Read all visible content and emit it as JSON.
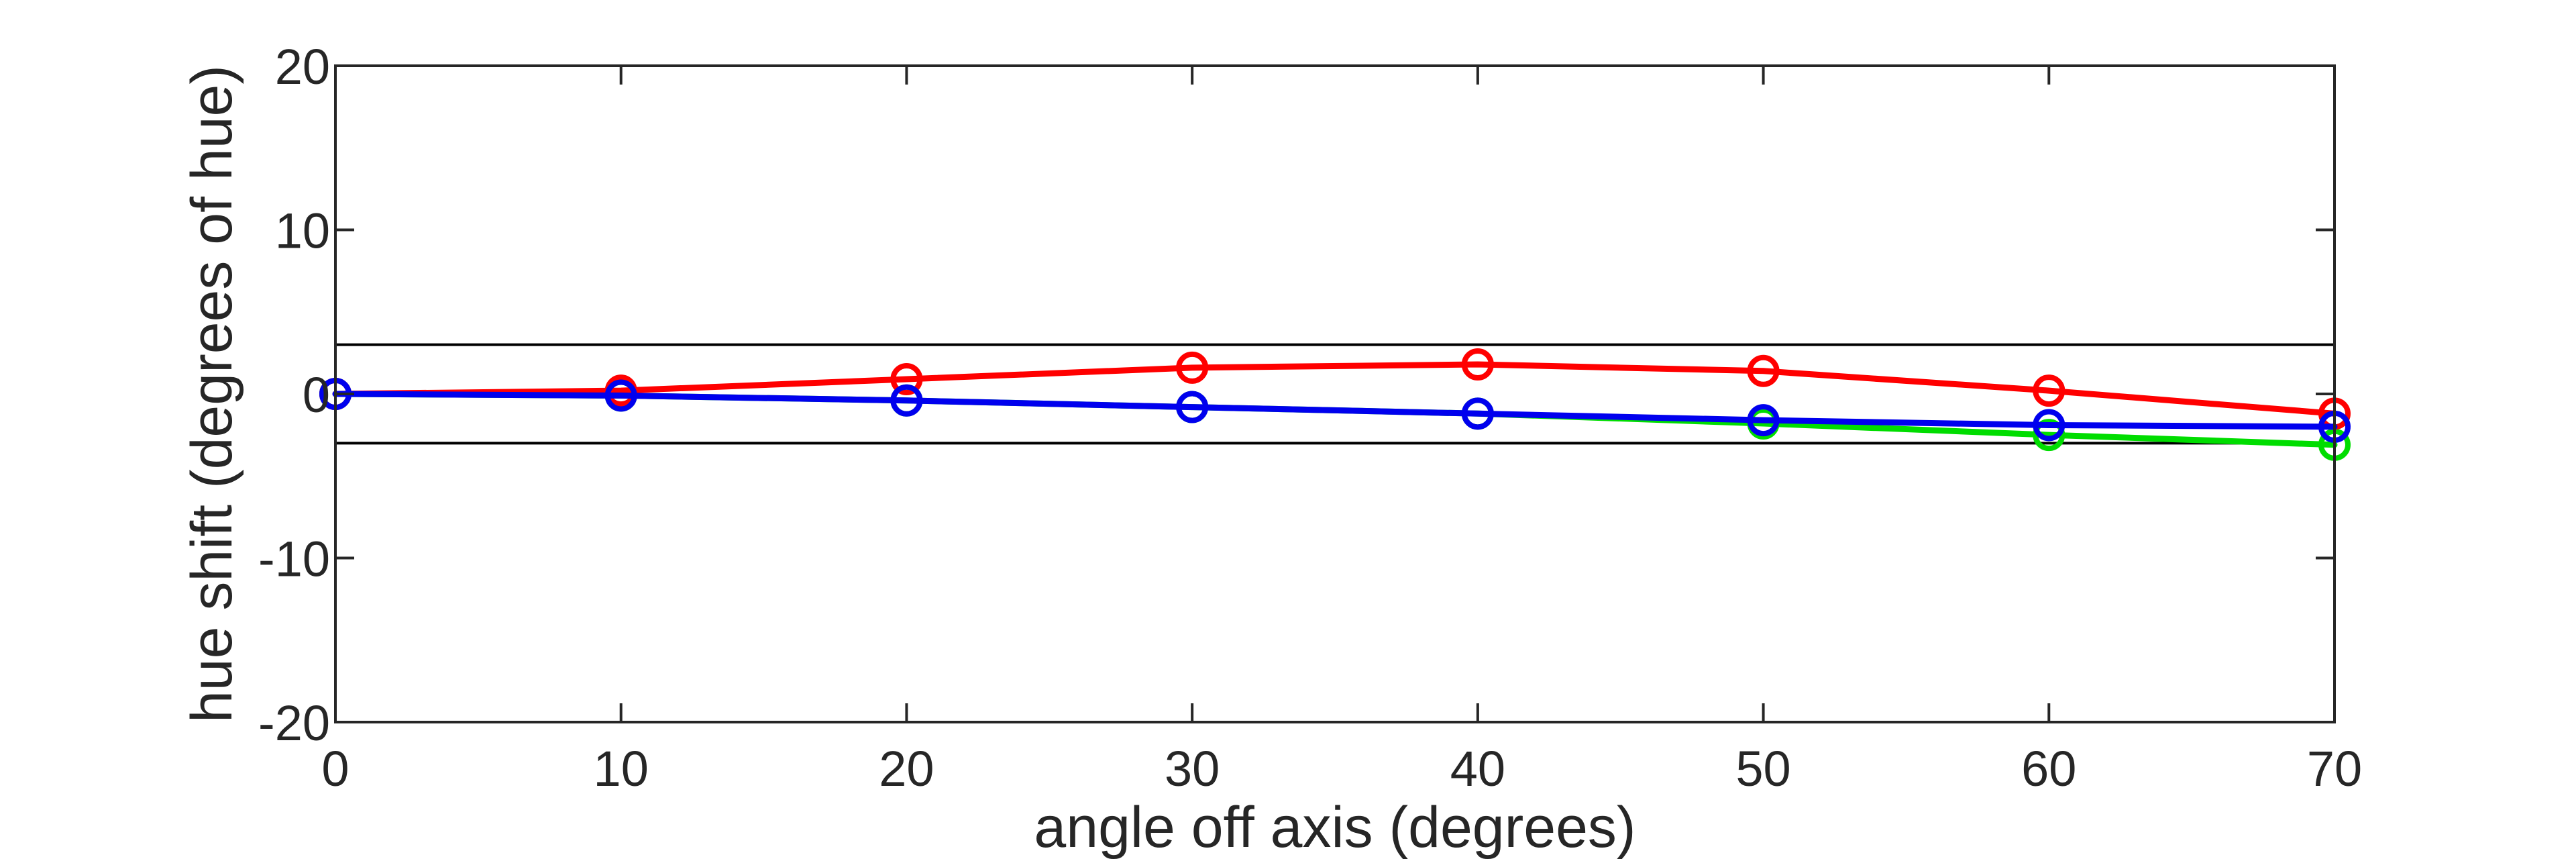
{
  "chart_data": {
    "type": "line",
    "xlabel": "angle off axis (degrees)",
    "ylabel": "hue shift (degrees of hue)",
    "xlim": [
      0,
      70
    ],
    "ylim": [
      -20,
      20
    ],
    "x_ticks": [
      0,
      10,
      20,
      30,
      40,
      50,
      60,
      70
    ],
    "y_ticks": [
      20,
      10,
      0,
      -10,
      -20
    ],
    "grid": false,
    "reference_lines": [
      3,
      -3
    ],
    "reference_line_color": "#000000",
    "x": [
      0,
      10,
      20,
      30,
      40,
      50,
      60,
      70
    ],
    "series": [
      {
        "color": "#00dd00",
        "values": [
          0,
          -0.1,
          -0.4,
          -0.8,
          -1.2,
          -1.8,
          -2.5,
          -3.1
        ]
      },
      {
        "color": "#ff0000",
        "values": [
          0,
          0.2,
          0.9,
          1.6,
          1.8,
          1.4,
          0.2,
          -1.2
        ]
      },
      {
        "color": "#0000ee",
        "values": [
          0,
          -0.1,
          -0.4,
          -0.8,
          -1.2,
          -1.6,
          -1.9,
          -2.0
        ]
      }
    ]
  }
}
